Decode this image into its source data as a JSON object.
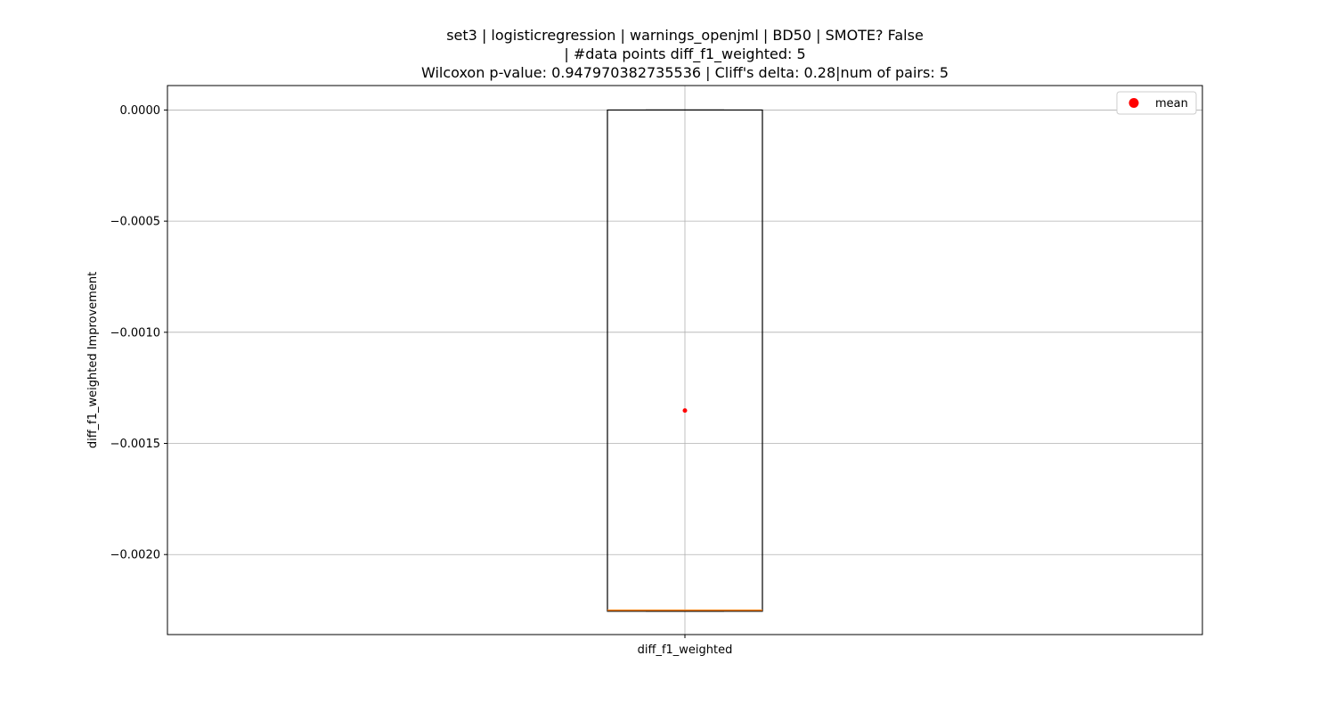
{
  "chart_data": {
    "type": "box",
    "title_lines": [
      "set3 | logisticregression | warnings_openjml | BD50 | SMOTE? False",
      "| #data points diff_f1_weighted: 5",
      "Wilcoxon p-value: 0.947970382735536 | Cliff's delta: 0.28|num of pairs: 5"
    ],
    "ylabel": "diff_f1_weighted Improvement",
    "xlabel": "",
    "categories": [
      "diff_f1_weighted"
    ],
    "ylim": [
      -0.00236,
      0.00011
    ],
    "yticks": [
      0.0,
      -0.0005,
      -0.001,
      -0.0015,
      -0.002
    ],
    "ytick_labels": [
      "0.0000",
      "−0.0005",
      "−0.0010",
      "−0.0015",
      "−0.0020"
    ],
    "grid": true,
    "legend": {
      "position": "upper right",
      "entries": [
        {
          "label": "mean",
          "marker": "circle",
          "color": "#ff0000"
        }
      ]
    },
    "boxes": [
      {
        "category": "diff_f1_weighted",
        "whisker_low": -0.002255,
        "q1": -0.002255,
        "median": -0.00225,
        "q3": 0.0,
        "whisker_high": 0.0,
        "mean": -0.001352
      }
    ],
    "colors": {
      "box": "#000000",
      "median": "#ff7f0e",
      "mean": "#ff0000",
      "grid": "#b0b0b0"
    }
  }
}
